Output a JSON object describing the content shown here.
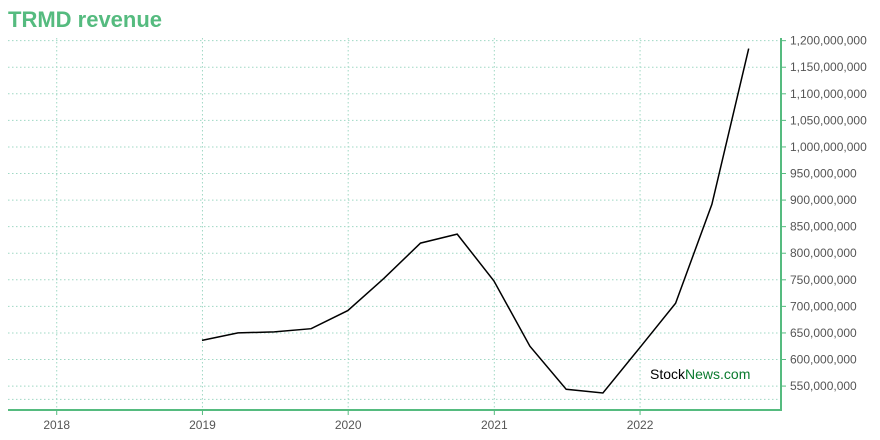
{
  "chart_data": {
    "type": "line",
    "title": "TRMD revenue",
    "xlabel": "",
    "ylabel": "",
    "x_tick_labels": [
      "2018",
      "2019",
      "2020",
      "2021",
      "2022"
    ],
    "y_tick_labels": [
      "550,000,000",
      "600,000,000",
      "650,000,000",
      "700,000,000",
      "750,000,000",
      "800,000,000",
      "850,000,000",
      "900,000,000",
      "950,000,000",
      "1,000,000,000",
      "1,050,000,000",
      "1,100,000,000",
      "1,150,000,000",
      "1,200,000,000"
    ],
    "xlim": [
      "2017-09-01",
      "2022-12-20"
    ],
    "ylim": [
      505000000,
      1205000000
    ],
    "grid": true,
    "y_axis_position": "right",
    "series": [
      {
        "x": [
          "2018-12-31",
          "2019-03-31",
          "2019-06-30",
          "2019-09-30",
          "2019-12-31",
          "2020-03-31",
          "2020-06-30",
          "2020-09-30",
          "2020-12-31",
          "2021-03-31",
          "2021-06-30",
          "2021-09-30",
          "2021-12-31",
          "2022-03-31",
          "2022-06-30",
          "2022-09-30"
        ],
        "values": [
          636000000,
          650000000,
          652000000,
          658000000,
          692000000,
          753000000,
          819000000,
          836000000,
          748000000,
          625000000,
          544000000,
          537000000,
          622000000,
          706000000,
          892000000,
          1185000000
        ],
        "color": "#000000"
      }
    ]
  },
  "watermark": {
    "part1": "Stock",
    "part2": "News",
    "part3": ".com"
  },
  "colors": {
    "accent": "#55bb7f",
    "grid": "#9fd8c4",
    "line": "#000000",
    "watermark_green": "#0a7a2e"
  }
}
